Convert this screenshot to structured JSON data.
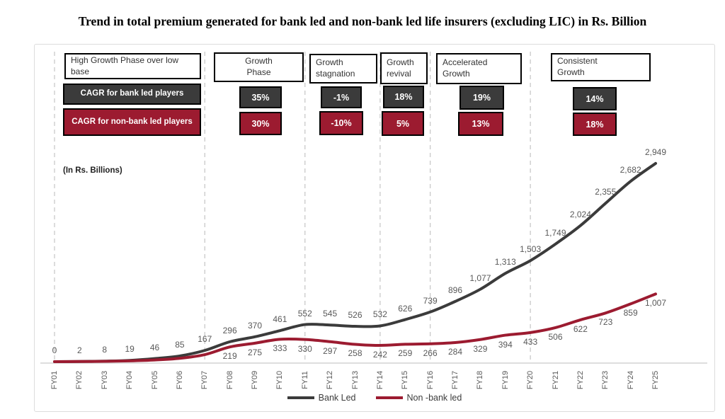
{
  "title": "Trend in total premium generated for bank led and non-bank led life insurers (excluding LIC) in Rs. Billion",
  "unit_label": "(In Rs. Billions)",
  "cagr_legend": {
    "bank_label": "CAGR for bank led players",
    "nonbank_label": "CAGR for non-bank led players"
  },
  "phases": [
    {
      "label": "High Growth Phase over low base"
    },
    {
      "label": "Growth Phase",
      "bank_cagr": "35%",
      "nonbank_cagr": "30%"
    },
    {
      "label": "Growth stagnation",
      "bank_cagr": "-1%",
      "nonbank_cagr": "-10%"
    },
    {
      "label": "Growth revival",
      "bank_cagr": "18%",
      "nonbank_cagr": "5%"
    },
    {
      "label": "Accelerated Growth",
      "bank_cagr": "19%",
      "nonbank_cagr": "13%"
    },
    {
      "label": "Consistent Growth",
      "bank_cagr": "14%",
      "nonbank_cagr": "18%"
    }
  ],
  "chart_data": {
    "type": "line",
    "title": "Trend in total premium generated for bank led and non-bank led life insurers (excluding LIC) in Rs. Billion",
    "ylabel": "(In Rs. Billions)",
    "ylim": [
      0,
      3100
    ],
    "grid": false,
    "legend_position": "bottom",
    "x": [
      "FY01",
      "FY02",
      "FY03",
      "FY04",
      "FY05",
      "FY06",
      "FY07",
      "FY08",
      "FY09",
      "FY10",
      "FY11",
      "FY12",
      "FY13",
      "FY14",
      "FY15",
      "FY16",
      "FY17",
      "FY18",
      "FY19",
      "FY20",
      "FY21",
      "FY22",
      "FY23",
      "FY24",
      "FY25"
    ],
    "series": [
      {
        "name": "Bank Led",
        "color": "#3b3b3b",
        "label_position": "above",
        "values": [
          0,
          2,
          8,
          19,
          46,
          85,
          167,
          296,
          370,
          461,
          552,
          545,
          526,
          532,
          626,
          739,
          896,
          1077,
          1313,
          1503,
          1749,
          2024,
          2355,
          2682,
          2949
        ],
        "labels": [
          "0",
          "2",
          "8",
          "19",
          "46",
          "85",
          "167",
          "296",
          "370",
          "461",
          "552",
          "545",
          "526",
          "532",
          "626",
          "739",
          "896",
          "1,077",
          "1,313",
          "1,503",
          "1,749",
          "2,024",
          "2,355",
          "2,682",
          "2,949"
        ]
      },
      {
        "name": "Non -bank led",
        "color": "#9c1b30",
        "label_position": "below",
        "values": [
          0,
          2,
          5,
          12,
          25,
          50,
          105,
          219,
          275,
          333,
          330,
          297,
          258,
          242,
          259,
          266,
          284,
          329,
          394,
          433,
          506,
          622,
          723,
          859,
          1007
        ],
        "labels": [
          "",
          "",
          "",
          "",
          "",
          "",
          "",
          "219",
          "275",
          "333",
          "330",
          "297",
          "258",
          "242",
          "259",
          "266",
          "284",
          "329",
          "394",
          "433",
          "506",
          "622",
          "723",
          "859",
          "1,007"
        ]
      }
    ],
    "phase_boundaries_x": [
      "FY01",
      "FY07",
      "FY11",
      "FY14",
      "FY16",
      "FY20"
    ],
    "cagr_by_phase": [
      {
        "phase": "High Growth Phase over low base",
        "span": "FY01-FY07",
        "bank": null,
        "nonbank": null
      },
      {
        "phase": "Growth Phase",
        "span": "FY07-FY11",
        "bank": "35%",
        "nonbank": "30%"
      },
      {
        "phase": "Growth stagnation",
        "span": "FY11-FY14",
        "bank": "-1%",
        "nonbank": "-10%"
      },
      {
        "phase": "Growth revival",
        "span": "FY14-FY16",
        "bank": "18%",
        "nonbank": "5%"
      },
      {
        "phase": "Accelerated Growth",
        "span": "FY16-FY20",
        "bank": "19%",
        "nonbank": "13%"
      },
      {
        "phase": "Consistent Growth",
        "span": "FY20-FY25",
        "bank": "14%",
        "nonbank": "18%"
      }
    ]
  }
}
